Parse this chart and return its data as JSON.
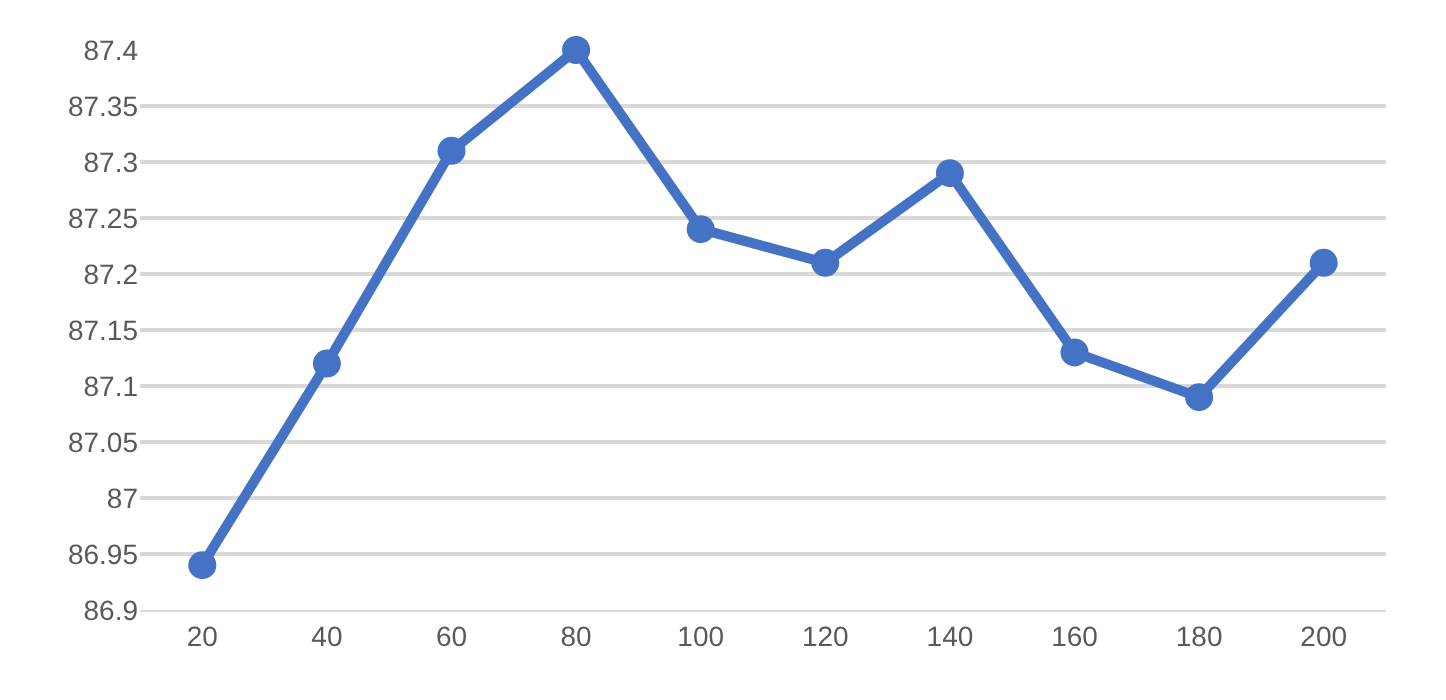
{
  "chart_data": {
    "type": "line",
    "categories": [
      "20",
      "40",
      "60",
      "80",
      "100",
      "120",
      "140",
      "160",
      "180",
      "200"
    ],
    "series": [
      {
        "color": "#4472c4",
        "values": [
          86.94,
          87.12,
          87.31,
          87.4,
          87.24,
          87.21,
          87.29,
          87.13,
          87.09,
          87.21
        ]
      }
    ],
    "ylim": [
      86.9,
      87.4
    ],
    "yticks": [
      {
        "value": 86.9,
        "label": "86.9"
      },
      {
        "value": 86.95,
        "label": "86.95"
      },
      {
        "value": 87,
        "label": "87"
      },
      {
        "value": 87.05,
        "label": "87.05"
      },
      {
        "value": 87.1,
        "label": "87.1"
      },
      {
        "value": 87.15,
        "label": "87.15"
      },
      {
        "value": 87.2,
        "label": "87.2"
      },
      {
        "value": 87.25,
        "label": "87.25"
      },
      {
        "value": 87.3,
        "label": "87.3"
      },
      {
        "value": 87.35,
        "label": "87.35"
      },
      {
        "value": 87.4,
        "label": "87.4"
      }
    ],
    "grid": "y",
    "marker": "circle",
    "line_style": "solid",
    "legend": false
  }
}
